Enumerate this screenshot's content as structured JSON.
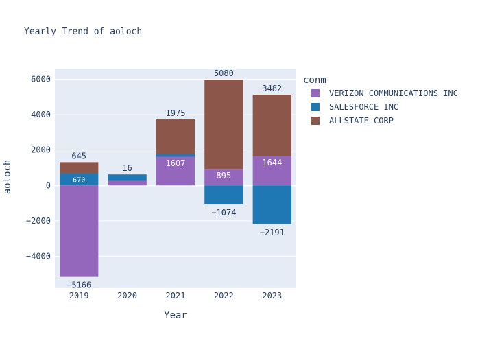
{
  "chart_data": {
    "type": "bar",
    "barmode": "relative",
    "title": "Yearly Trend of aoloch",
    "xlabel": "Year",
    "ylabel": "aoloch",
    "categories": [
      "2019",
      "2020",
      "2021",
      "2022",
      "2023"
    ],
    "ylim": [
      -5800,
      6600
    ],
    "yticks": [
      -4000,
      -2000,
      0,
      2000,
      4000,
      6000
    ],
    "ytick_labels": [
      "−4000",
      "−2000",
      "0",
      "2000",
      "4000",
      "6000"
    ],
    "grid": true,
    "legend_title": "conm",
    "legend_position": "right",
    "series": [
      {
        "name": "VERIZON COMMUNICATIONS INC",
        "color": "#9467bd",
        "values": [
          -5166,
          250,
          1607,
          895,
          1644
        ],
        "labels": [
          "−5166",
          "",
          "1607",
          "895",
          "1644"
        ]
      },
      {
        "name": "SALESFORCE INC",
        "color": "#1f77b4",
        "values": [
          670,
          360,
          150,
          -1074,
          -2191
        ],
        "labels": [
          "670",
          "",
          "",
          "−1074",
          "−2191"
        ]
      },
      {
        "name": "ALLSTATE CORP",
        "color": "#8c564b",
        "values": [
          645,
          16,
          1975,
          5080,
          3482
        ],
        "labels": [
          "645",
          "16",
          "1975",
          "5080",
          "3482"
        ]
      }
    ]
  }
}
